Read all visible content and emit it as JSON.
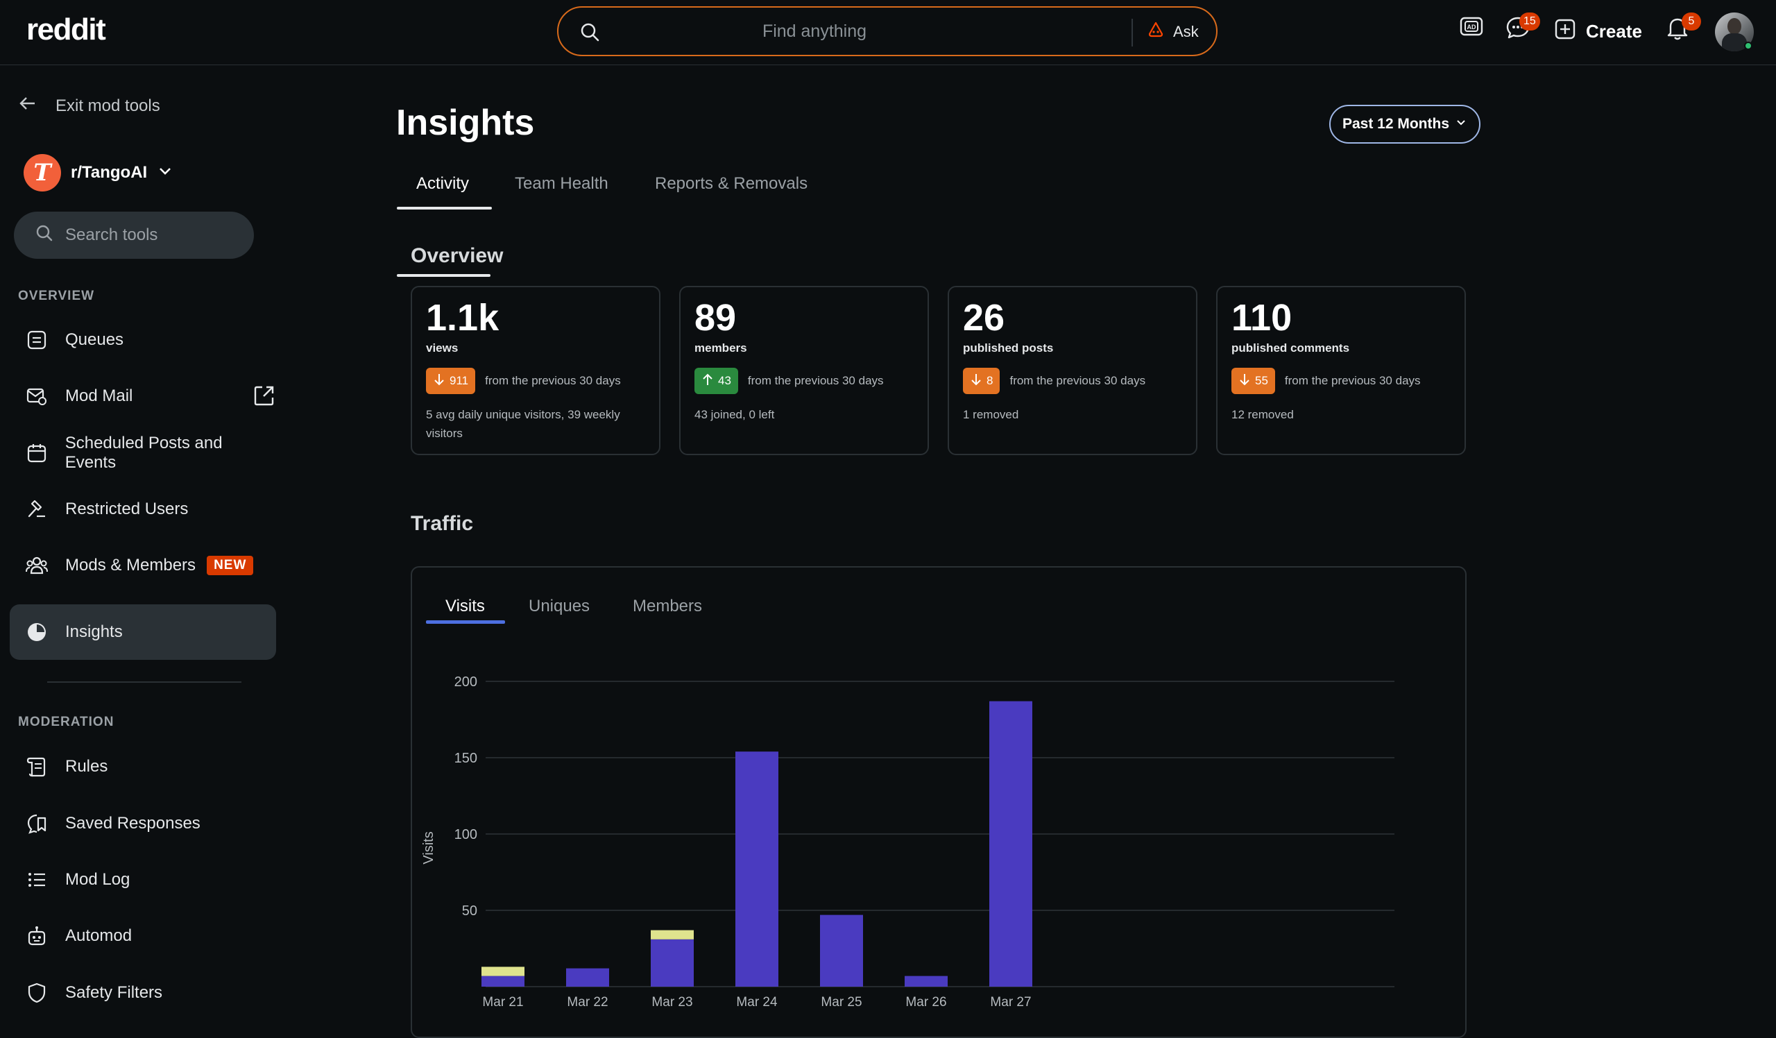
{
  "topbar": {
    "logo": "reddit",
    "search_placeholder": "Find anything",
    "ask_label": "Ask",
    "chat_badge": "15",
    "create_label": "Create",
    "notif_badge": "5"
  },
  "sidebar": {
    "exit_label": "Exit mod tools",
    "community": "r/TangoAI",
    "search_placeholder": "Search tools",
    "overview_label": "OVERVIEW",
    "overview_items": [
      {
        "label": "Queues",
        "icon": "queue-icon"
      },
      {
        "label": "Mod Mail",
        "icon": "mail-icon"
      },
      {
        "label": "Scheduled Posts and Events",
        "icon": "calendar-icon"
      },
      {
        "label": "Restricted Users",
        "icon": "hammer-icon"
      },
      {
        "label": "Mods & Members",
        "icon": "members-icon",
        "badge": "NEW"
      },
      {
        "label": "Insights",
        "icon": "pie-chart-icon",
        "active": true
      }
    ],
    "moderation_label": "MODERATION",
    "moderation_items": [
      {
        "label": "Rules",
        "icon": "scroll-icon"
      },
      {
        "label": "Saved Responses",
        "icon": "saved-response-icon"
      },
      {
        "label": "Mod Log",
        "icon": "list-icon"
      },
      {
        "label": "Automod",
        "icon": "robot-icon"
      },
      {
        "label": "Safety Filters",
        "icon": "shield-icon"
      }
    ]
  },
  "main": {
    "title": "Insights",
    "range_label": "Past 12 Months",
    "tabs": [
      "Activity",
      "Team Health",
      "Reports & Removals"
    ],
    "overview_title": "Overview",
    "cards": [
      {
        "value": "1.1k",
        "unit": "views",
        "delta": "911",
        "direction": "down",
        "delta_text": "from the previous 30 days",
        "note": "5 avg daily unique visitors, 39 weekly visitors"
      },
      {
        "value": "89",
        "unit": "members",
        "delta": "43",
        "direction": "up",
        "delta_text": "from the previous 30 days",
        "note": "43 joined, 0 left"
      },
      {
        "value": "26",
        "unit": "published posts",
        "delta": "8",
        "direction": "down",
        "delta_text": "from the previous 30 days",
        "note": "1 removed"
      },
      {
        "value": "110",
        "unit": "published comments",
        "delta": "55",
        "direction": "down",
        "delta_text": "from the previous 30 days",
        "note": "12 removed"
      }
    ],
    "traffic_title": "Traffic",
    "traffic_tabs": [
      "Visits",
      "Uniques",
      "Members"
    ]
  },
  "colors": {
    "accent": "#d93a00",
    "bar_primary": "#4a3bc0",
    "bar_secondary": "#dfe38e",
    "tab_underline": "#4d6fe0"
  },
  "chart_data": {
    "type": "bar",
    "ylabel": "Visits",
    "categories": [
      "Mar 21",
      "Mar 22",
      "Mar 23",
      "Mar 24",
      "Mar 25",
      "Mar 26",
      "Mar 27"
    ],
    "series": [
      {
        "values": [
          7,
          12,
          31,
          154,
          47,
          7,
          187
        ]
      },
      {
        "values": [
          6,
          0,
          6,
          0,
          0,
          0,
          0
        ]
      }
    ],
    "ylim": [
      0,
      200
    ],
    "yticks": [
      50,
      100,
      150,
      200
    ],
    "grid": true
  }
}
